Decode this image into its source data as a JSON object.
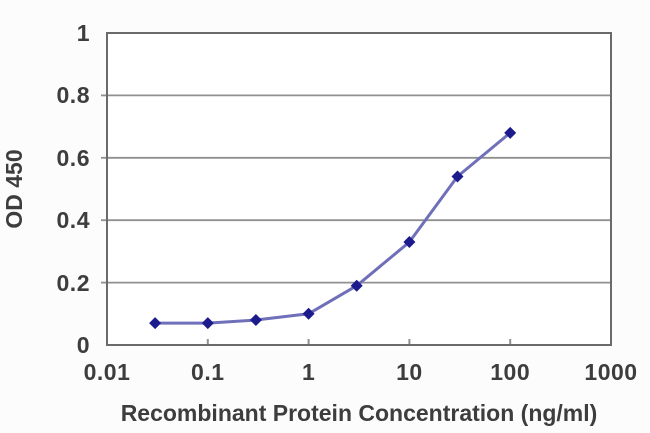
{
  "chart_data": {
    "type": "line",
    "title": "",
    "xlabel": "Recombinant Protein Concentration (ng/ml)",
    "ylabel": "OD 450",
    "x_scale": "log",
    "xlim": [
      0.01,
      1000
    ],
    "ylim": [
      0,
      1
    ],
    "grid": true,
    "legend": false,
    "x_ticks": [
      {
        "value": 0.01,
        "label": "0.01"
      },
      {
        "value": 0.1,
        "label": "0.1"
      },
      {
        "value": 1,
        "label": "1"
      },
      {
        "value": 10,
        "label": "10"
      },
      {
        "value": 100,
        "label": "100"
      },
      {
        "value": 1000,
        "label": "1000"
      }
    ],
    "y_ticks": [
      {
        "value": 0,
        "label": "0"
      },
      {
        "value": 0.2,
        "label": "0.2"
      },
      {
        "value": 0.4,
        "label": "0.4"
      },
      {
        "value": 0.6,
        "label": "0.6"
      },
      {
        "value": 0.8,
        "label": "0.8"
      },
      {
        "value": 1,
        "label": "1"
      }
    ],
    "series": [
      {
        "marker": "diamond",
        "points": [
          {
            "x": 0.03,
            "y": 0.07
          },
          {
            "x": 0.1,
            "y": 0.07
          },
          {
            "x": 0.3,
            "y": 0.08
          },
          {
            "x": 1,
            "y": 0.1
          },
          {
            "x": 3,
            "y": 0.19
          },
          {
            "x": 10,
            "y": 0.33
          },
          {
            "x": 30,
            "y": 0.54
          },
          {
            "x": 100,
            "y": 0.68
          }
        ]
      }
    ],
    "colors": {
      "line": "#6f6fba",
      "marker": "#1b1b8e",
      "grid": "#909090",
      "border": "#6a6a6a",
      "text": "#3d3d3d",
      "plot_background": "#ffffff",
      "page_background": "#fcfcfc"
    }
  }
}
